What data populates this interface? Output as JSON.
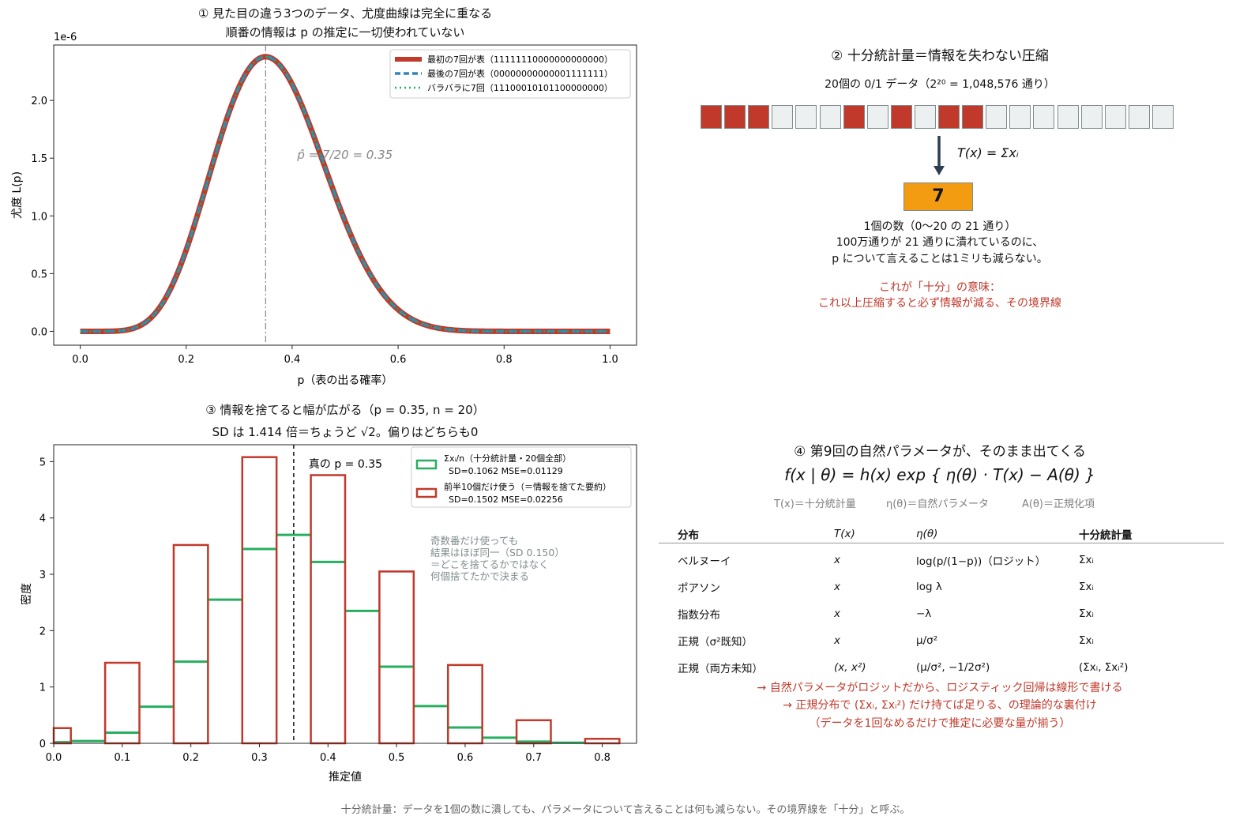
{
  "chart_data": [
    {
      "type": "line",
      "title": "① 見た目の違う3つのデータ、尤度曲線は完全に重なる",
      "subtitle": "順番の情報は p の推定に一切使われていない",
      "xlabel": "p（表の出る確率）",
      "ylabel": "尤度 L(p)",
      "y_scale_label": "1e-6",
      "xlim": [
        -0.05,
        1.05
      ],
      "ylim": [
        -0.12,
        2.48
      ],
      "x_ticks": [
        "0.0",
        "0.2",
        "0.4",
        "0.6",
        "0.8",
        "1.0"
      ],
      "y_ticks": [
        "0.0",
        "0.5",
        "1.0",
        "1.5",
        "2.0"
      ],
      "likelihood_n": 20,
      "likelihood_k": 7,
      "series": [
        {
          "name": "最初の7回が表（11111110000000000000）",
          "color": "#c0392b",
          "style": "solid"
        },
        {
          "name": "最後の7回が表（00000000000001111111）",
          "color": "#2e86c1",
          "style": "dashed"
        },
        {
          "name": "バラバラに7回（11100010101100000000）",
          "color": "#27ae60",
          "style": "dotted"
        }
      ],
      "vline_x": 0.35,
      "annotation": "p̂ = 7/20 = 0.35",
      "legend": "top-right"
    },
    {
      "type": "bar",
      "title": "③ 情報を捨てると幅が広がる（p = 0.35, n = 20）",
      "subtitle": "SD は 1.414 倍＝ちょうど √2。偏りはどちらも0",
      "xlabel": "推定値",
      "ylabel": "密度",
      "xlim": [
        0.0,
        0.85
      ],
      "ylim": [
        0,
        5.3
      ],
      "x_ticks": [
        "0.0",
        "0.1",
        "0.2",
        "0.3",
        "0.4",
        "0.5",
        "0.6",
        "0.7",
        "0.8"
      ],
      "y_ticks": [
        "0",
        "1",
        "2",
        "3",
        "4",
        "5"
      ],
      "series": [
        {
          "name": "Σxᵢ/n（十分統計量・20個全部）",
          "stats": "SD=0.1062  MSE=0.01129",
          "color": "#27ae60",
          "bin_width": 0.05,
          "x": [
            0.0,
            0.05,
            0.1,
            0.15,
            0.2,
            0.25,
            0.3,
            0.35,
            0.4,
            0.45,
            0.5,
            0.55,
            0.6,
            0.65,
            0.7,
            0.75
          ],
          "values": [
            0.02,
            0.04,
            0.19,
            0.65,
            1.45,
            2.55,
            3.45,
            3.7,
            3.22,
            2.35,
            1.36,
            0.66,
            0.28,
            0.1,
            0.03,
            0.01
          ]
        },
        {
          "name": "前半10個だけ使う（＝情報を捨てた要約）",
          "stats": "SD=0.1502  MSE=0.02256",
          "color": "#c0392b",
          "bin_width": 0.05,
          "x": [
            0.0,
            0.1,
            0.2,
            0.3,
            0.4,
            0.5,
            0.6,
            0.7,
            0.8
          ],
          "values": [
            0.27,
            1.43,
            3.52,
            5.08,
            4.76,
            3.05,
            1.39,
            0.41,
            0.08
          ]
        }
      ],
      "vline_x": 0.35,
      "vline_label": "真の p = 0.35",
      "annotation": [
        "奇数番だけ使っても",
        "結果はほぼ同一（SD 0.150）",
        "＝どこを捨てるかではなく",
        "何個捨てたかで決まる"
      ],
      "legend": "top-right"
    }
  ],
  "panel2": {
    "title": "② 十分統計量＝情報を失わない圧縮",
    "caption": "20個の 0/1 データ（2²⁰ = 1,048,576 通り）",
    "bits": [
      1,
      1,
      1,
      0,
      0,
      0,
      1,
      0,
      1,
      0,
      1,
      1,
      0,
      0,
      0,
      0,
      0,
      0,
      0,
      0
    ],
    "colors": {
      "one": "#c0392b",
      "zero": "#ecf0f1",
      "box": "#f39c12"
    },
    "arrow_label": "T(x) = Σxᵢ",
    "result": "7",
    "desc": [
      "1個の数（0〜20 の 21 通り）",
      "100万通りが 21 通りに潰れているのに、",
      "p について言えることは1ミリも減らない。"
    ],
    "highlight": [
      "これが「十分」の意味：",
      "これ以上圧縮すると必ず情報が減る、その境界線"
    ]
  },
  "panel4": {
    "title": "④ 第9回の自然パラメータが、そのまま出てくる",
    "formula": "f(x | θ) = h(x) exp { η(θ) · T(x) − A(θ) }",
    "legend_items": [
      "T(x)＝十分統計量",
      "η(θ)＝自然パラメータ",
      "A(θ)＝正規化項"
    ],
    "headers": [
      "分布",
      "T(x)",
      "η(θ)",
      "十分統計量"
    ],
    "rows": [
      [
        "ベルヌーイ",
        "x",
        "log(p/(1−p))（ロジット）",
        "Σxᵢ"
      ],
      [
        "ポアソン",
        "x",
        "log λ",
        "Σxᵢ"
      ],
      [
        "指数分布",
        "x",
        "−λ",
        "Σxᵢ"
      ],
      [
        "正規（σ²既知）",
        "x",
        "μ/σ²",
        "Σxᵢ"
      ],
      [
        "正規（両方未知）",
        "(x, x²)",
        "(μ/σ², −1/2σ²)",
        "(Σxᵢ, Σxᵢ²)"
      ]
    ],
    "notes": [
      "→ 自然パラメータがロジットだから、ロジスティック回帰は線形で書ける",
      "→ 正規分布で (Σxᵢ, Σxᵢ²) だけ持てば足りる、の理論的な裏付け",
      "（データを1回なめるだけで推定に必要な量が揃う）"
    ]
  },
  "footer": "十分統計量：データを1個の数に潰しても、パラメータについて言えることは何も減らない。その境界線を「十分」と呼ぶ。"
}
